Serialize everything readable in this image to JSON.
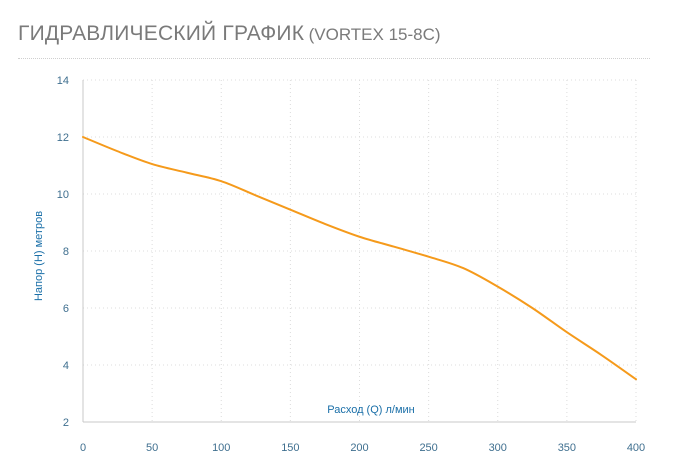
{
  "header": {
    "title": "ГИДРАВЛИЧЕСКИЙ ГРАФИК",
    "model": "(VORTEX 15-8C)"
  },
  "colors": {
    "line": "#f59a1b",
    "axis_text": "#3f6f8f",
    "axis_title": "#1a6fa8",
    "grid": "#dcdcdc"
  },
  "chart_data": {
    "type": "line",
    "title": "ГИДРАВЛИЧЕСКИЙ ГРАФИК (VORTEX 15-8C)",
    "xlabel": "Расход (Q) л/мин",
    "ylabel": "Напор (H) метров",
    "xlim": [
      0,
      400
    ],
    "ylim": [
      2,
      14
    ],
    "xticks": [
      0,
      50,
      100,
      150,
      200,
      250,
      300,
      350,
      400
    ],
    "yticks": [
      2,
      4,
      6,
      8,
      10,
      12,
      14
    ],
    "grid": true,
    "series": [
      {
        "x": [
          0,
          25,
          50,
          75,
          100,
          125,
          150,
          175,
          200,
          225,
          250,
          275,
          300,
          325,
          350,
          375,
          400
        ],
        "y": [
          12.0,
          11.5,
          11.05,
          10.75,
          10.45,
          9.95,
          9.45,
          8.95,
          8.5,
          8.15,
          7.8,
          7.4,
          6.75,
          6.0,
          5.15,
          4.35,
          3.5
        ]
      }
    ]
  }
}
